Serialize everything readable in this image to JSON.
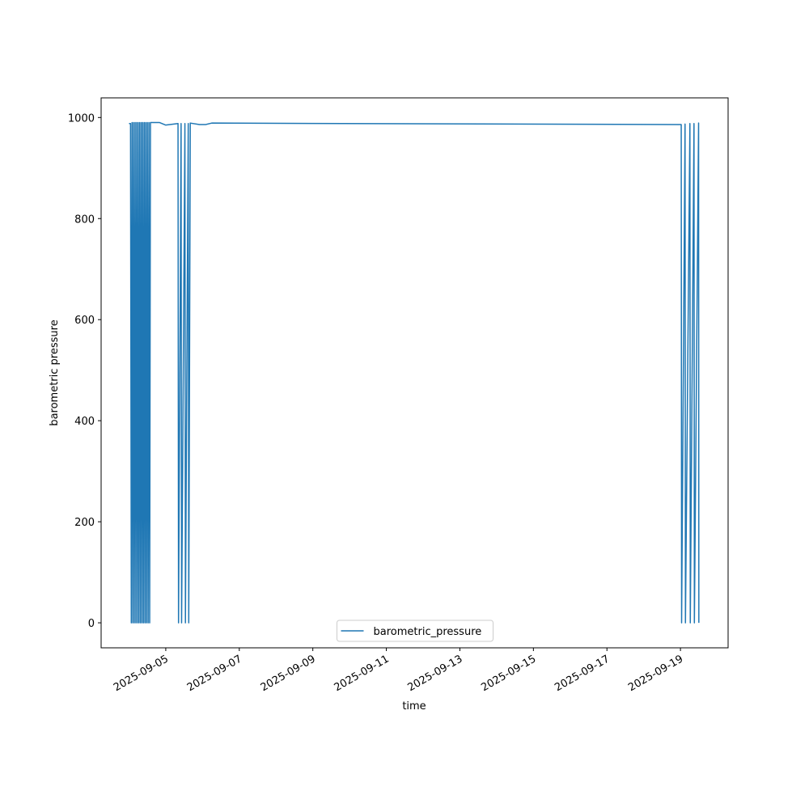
{
  "chart_data": {
    "type": "line",
    "xlabel": "time",
    "ylabel": "barometric pressure",
    "x": [
      "2025-09-04T00:00",
      "2025-09-04T01:00",
      "2025-09-04T01:30",
      "2025-09-04T02:00",
      "2025-09-04T02:30",
      "2025-09-04T03:00",
      "2025-09-04T03:30",
      "2025-09-04T04:00",
      "2025-09-04T04:30",
      "2025-09-04T05:00",
      "2025-09-04T05:30",
      "2025-09-04T06:00",
      "2025-09-04T06:30",
      "2025-09-04T07:00",
      "2025-09-04T07:30",
      "2025-09-04T08:00",
      "2025-09-04T08:30",
      "2025-09-04T09:00",
      "2025-09-04T09:30",
      "2025-09-04T10:00",
      "2025-09-04T10:30",
      "2025-09-04T11:00",
      "2025-09-04T11:30",
      "2025-09-04T12:00",
      "2025-09-04T12:30",
      "2025-09-04T13:00",
      "2025-09-04T13:30",
      "2025-09-04T14:00",
      "2025-09-04T20:00",
      "2025-09-05T00:00",
      "2025-09-05T08:00",
      "2025-09-05T08:20",
      "2025-09-05T10:00",
      "2025-09-05T10:20",
      "2025-09-05T12:30",
      "2025-09-05T12:50",
      "2025-09-05T14:40",
      "2025-09-05T15:00",
      "2025-09-05T16:00",
      "2025-09-05T22:00",
      "2025-09-06T02:00",
      "2025-09-06T06:00",
      "2025-09-18T22:00",
      "2025-09-19T00:30",
      "2025-09-19T00:45",
      "2025-09-19T03:00",
      "2025-09-19T03:15",
      "2025-09-19T06:10",
      "2025-09-19T06:25",
      "2025-09-19T08:50",
      "2025-09-19T09:05",
      "2025-09-19T11:50",
      "2025-09-19T12:00"
    ],
    "series": [
      {
        "name": "barometric_pressure",
        "color": "#1f77b4",
        "values": [
          988,
          988,
          0,
          990,
          0,
          990,
          0,
          990,
          0,
          990,
          0,
          990,
          0,
          990,
          0,
          990,
          0,
          990,
          0,
          990,
          0,
          990,
          0,
          990,
          0,
          990,
          0,
          990,
          990,
          985,
          988,
          0,
          988,
          0,
          988,
          0,
          988,
          0,
          989,
          986,
          986,
          989,
          986,
          986,
          0,
          987,
          0,
          988,
          0,
          988,
          0,
          989,
          0
        ]
      }
    ],
    "xlim": [
      "2025-09-03T05:48",
      "2025-09-20T07:06"
    ],
    "xticks": [
      "2025-09-05",
      "2025-09-07",
      "2025-09-09",
      "2025-09-11",
      "2025-09-13",
      "2025-09-15",
      "2025-09-17",
      "2025-09-19"
    ],
    "ylim": [
      -49.5,
      1038.9
    ],
    "yticks": [
      0,
      200,
      400,
      600,
      800,
      1000
    ],
    "grid": false,
    "legend": "lower center"
  }
}
